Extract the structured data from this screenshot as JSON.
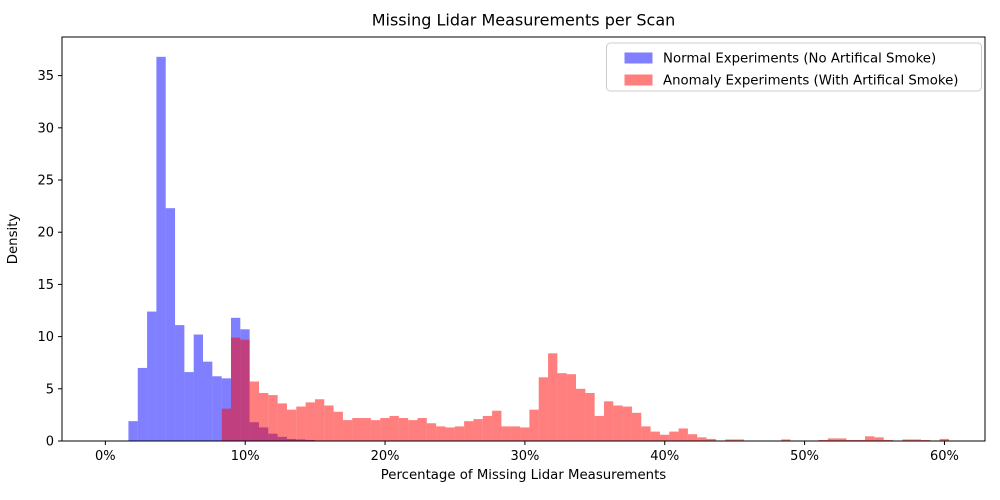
{
  "chart_data": {
    "type": "bar",
    "subtype": "overlaid-histogram",
    "title": "Missing Lidar Measurements per Scan",
    "xlabel": "Percentage of Missing Lidar Measurements",
    "ylabel": "Density",
    "xlim": [
      -3.1,
      62.9
    ],
    "ylim": [
      0,
      38.7
    ],
    "grid": false,
    "legend_position": "upper right",
    "xtick_values": [
      0,
      10,
      20,
      30,
      40,
      50,
      60
    ],
    "xtick_labels": [
      "0%",
      "10%",
      "20%",
      "30%",
      "40%",
      "50%",
      "60%"
    ],
    "ytick_values": [
      0,
      5,
      10,
      15,
      20,
      25,
      30,
      35
    ],
    "ytick_labels": [
      "0",
      "5",
      "10",
      "15",
      "20",
      "25",
      "30",
      "35"
    ],
    "bin_width": 0.6667,
    "series": [
      {
        "name": "Normal Experiments (No Artifical Smoke)",
        "color": "#0000ff",
        "opacity": 0.5,
        "bin_start": 1.65,
        "values": [
          1.9,
          7.0,
          12.4,
          36.8,
          22.3,
          11.1,
          6.6,
          10.2,
          7.6,
          6.2,
          6.0,
          11.8,
          10.7,
          1.8,
          1.3,
          0.7,
          0.4,
          0.2,
          0.15,
          0.1
        ]
      },
      {
        "name": "Anomaly Experiments (With Artifical Smoke)",
        "color": "#ff0000",
        "opacity": 0.5,
        "bin_start": 8.32,
        "values": [
          3.1,
          9.9,
          9.7,
          5.7,
          4.6,
          4.4,
          3.6,
          3.0,
          3.3,
          3.7,
          4.0,
          3.4,
          2.8,
          2.0,
          2.2,
          2.2,
          2.0,
          2.2,
          2.4,
          2.2,
          2.0,
          2.2,
          1.7,
          1.4,
          1.3,
          1.4,
          1.9,
          2.1,
          2.4,
          2.9,
          1.4,
          1.4,
          1.3,
          3.0,
          6.1,
          8.4,
          6.5,
          6.4,
          5.0,
          4.6,
          2.4,
          3.8,
          3.4,
          3.3,
          2.7,
          1.4,
          0.9,
          0.6,
          0.9,
          1.2,
          0.65,
          0.35,
          0.2,
          0.05,
          0.15,
          0.15,
          0,
          0,
          0,
          0,
          0.15,
          0,
          0,
          0,
          0.1,
          0.25,
          0.25,
          0.1,
          0.1,
          0.45,
          0.35,
          0.1,
          0,
          0.15,
          0.15,
          0.1,
          0,
          0.2
        ]
      }
    ],
    "colors": {
      "blue_fill_on_white": "#7f7fff",
      "red_fill_on_white": "#ff7f7f",
      "overlap_fill": "#bf4080",
      "spine": "#000000",
      "legend_edge": "#cccccc"
    }
  }
}
